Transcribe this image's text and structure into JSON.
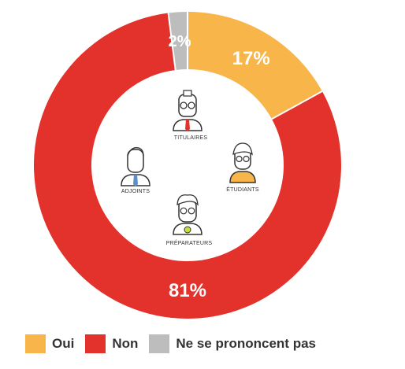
{
  "chart_data": {
    "type": "pie",
    "variant": "donut",
    "categories": [
      "Oui",
      "Non",
      "Ne se prononcent pas"
    ],
    "values": [
      17,
      81,
      2
    ],
    "value_labels": [
      "17%",
      "81%",
      "2%"
    ],
    "colors": [
      "#F7B54A",
      "#E3322B",
      "#BDBDBD"
    ],
    "legend_position": "bottom-left",
    "center_labels": [
      "TITULAIRES",
      "ÉTUDIANTS",
      "ADJOINTS",
      "PRÉPARATEURS"
    ]
  }
}
